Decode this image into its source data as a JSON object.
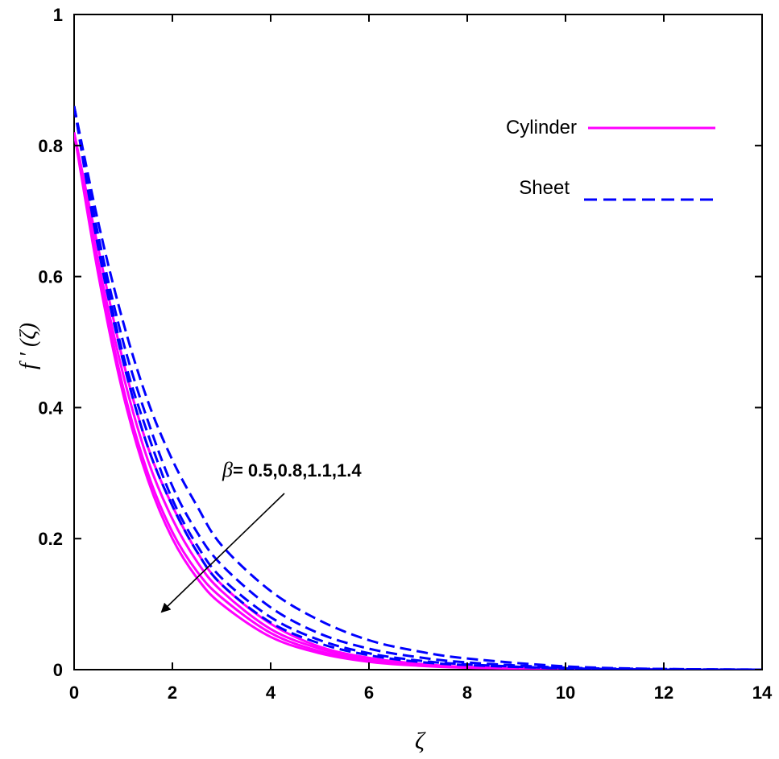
{
  "chart_data": {
    "type": "line",
    "title": "",
    "xlabel": "ζ",
    "ylabel": "f ′ (ζ)",
    "xlim": [
      0,
      14
    ],
    "ylim": [
      0,
      1
    ],
    "xticks": [
      0,
      2,
      4,
      6,
      8,
      10,
      12,
      14
    ],
    "yticks": [
      0,
      0.2,
      0.4,
      0.6,
      0.8,
      1
    ],
    "xtick_labels": [
      "0",
      "2",
      "4",
      "6",
      "8",
      "10",
      "12",
      "14"
    ],
    "ytick_labels": [
      "0",
      "0.2",
      "0.4",
      "0.6",
      "0.8",
      "1"
    ],
    "grid": false,
    "legend_position": "top-right",
    "legend": [
      {
        "label": "Cylinder",
        "style": "solid",
        "color": "#ff00ff"
      },
      {
        "label": "Sheet",
        "style": "dashed",
        "color": "#0000ff"
      }
    ],
    "annotation": {
      "text": "β= 0.5,0.8,1.1,1.4",
      "symbol": "β",
      "rest": "= 0.5,0.8,1.1,1.4",
      "arrow": "pointing toward lower-left (direction of increasing β)"
    },
    "parameter_values": [
      0.5,
      0.8,
      1.1,
      1.4
    ],
    "series": [
      {
        "group": "Cylinder",
        "beta": 0.5,
        "color": "#ff00ff",
        "dash": "solid",
        "x": [
          0,
          0.5,
          1,
          1.5,
          2,
          2.5,
          3,
          4,
          5,
          6,
          7,
          8,
          10,
          12,
          14
        ],
        "y": [
          0.82,
          0.64,
          0.47,
          0.34,
          0.25,
          0.18,
          0.13,
          0.07,
          0.035,
          0.018,
          0.009,
          0.004,
          0.001,
          0.0,
          0.0
        ]
      },
      {
        "group": "Cylinder",
        "beta": 0.8,
        "color": "#ff00ff",
        "dash": "solid",
        "x": [
          0,
          0.5,
          1,
          1.5,
          2,
          2.5,
          3,
          4,
          5,
          6,
          7,
          8,
          10,
          12,
          14
        ],
        "y": [
          0.82,
          0.62,
          0.45,
          0.32,
          0.23,
          0.165,
          0.12,
          0.062,
          0.032,
          0.016,
          0.008,
          0.004,
          0.001,
          0.0,
          0.0
        ]
      },
      {
        "group": "Cylinder",
        "beta": 1.1,
        "color": "#ff00ff",
        "dash": "solid",
        "x": [
          0,
          0.5,
          1,
          1.5,
          2,
          2.5,
          3,
          4,
          5,
          6,
          7,
          8,
          10,
          12,
          14
        ],
        "y": [
          0.82,
          0.61,
          0.43,
          0.3,
          0.21,
          0.15,
          0.11,
          0.056,
          0.028,
          0.014,
          0.007,
          0.003,
          0.001,
          0.0,
          0.0
        ]
      },
      {
        "group": "Cylinder",
        "beta": 1.4,
        "color": "#ff00ff",
        "dash": "solid",
        "x": [
          0,
          0.5,
          1,
          1.5,
          2,
          2.5,
          3,
          4,
          5,
          6,
          7,
          8,
          10,
          12,
          14
        ],
        "y": [
          0.82,
          0.6,
          0.42,
          0.29,
          0.2,
          0.14,
          0.1,
          0.05,
          0.025,
          0.012,
          0.006,
          0.003,
          0.001,
          0.0,
          0.0
        ]
      },
      {
        "group": "Sheet",
        "beta": 0.5,
        "color": "#0000ff",
        "dash": "dashed",
        "x": [
          0,
          0.5,
          1,
          1.5,
          2,
          2.5,
          3,
          4,
          5,
          6,
          7,
          8,
          10,
          12,
          14
        ],
        "y": [
          0.86,
          0.68,
          0.53,
          0.41,
          0.32,
          0.25,
          0.19,
          0.12,
          0.075,
          0.045,
          0.028,
          0.017,
          0.005,
          0.001,
          0.0
        ]
      },
      {
        "group": "Sheet",
        "beta": 0.8,
        "color": "#0000ff",
        "dash": "dashed",
        "x": [
          0,
          0.5,
          1,
          1.5,
          2,
          2.5,
          3,
          4,
          5,
          6,
          7,
          8,
          10,
          12,
          14
        ],
        "y": [
          0.86,
          0.66,
          0.5,
          0.38,
          0.28,
          0.21,
          0.16,
          0.095,
          0.055,
          0.032,
          0.019,
          0.011,
          0.003,
          0.001,
          0.0
        ]
      },
      {
        "group": "Sheet",
        "beta": 1.1,
        "color": "#0000ff",
        "dash": "dashed",
        "x": [
          0,
          0.5,
          1,
          1.5,
          2,
          2.5,
          3,
          4,
          5,
          6,
          7,
          8,
          10,
          12,
          14
        ],
        "y": [
          0.86,
          0.65,
          0.48,
          0.36,
          0.26,
          0.19,
          0.14,
          0.08,
          0.045,
          0.025,
          0.014,
          0.008,
          0.002,
          0.0,
          0.0
        ]
      },
      {
        "group": "Sheet",
        "beta": 1.4,
        "color": "#0000ff",
        "dash": "dashed",
        "x": [
          0,
          0.5,
          1,
          1.5,
          2,
          2.5,
          3,
          4,
          5,
          6,
          7,
          8,
          10,
          12,
          14
        ],
        "y": [
          0.86,
          0.64,
          0.47,
          0.34,
          0.25,
          0.18,
          0.13,
          0.072,
          0.04,
          0.022,
          0.012,
          0.007,
          0.002,
          0.0,
          0.0
        ]
      }
    ]
  }
}
